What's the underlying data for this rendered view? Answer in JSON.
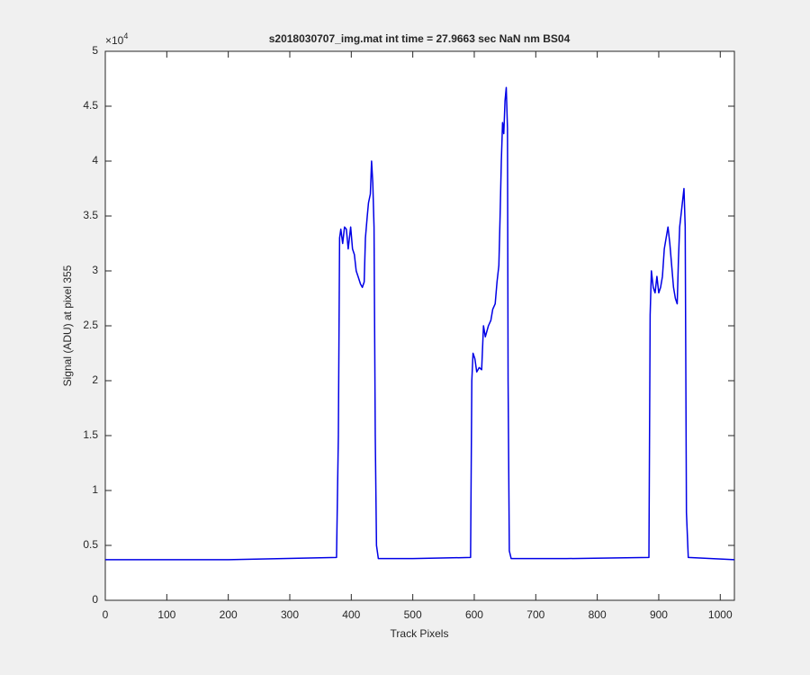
{
  "chart_data": {
    "type": "line",
    "title": "s2018030707_img.mat int time = 27.9663 sec  NaN nm BS04",
    "x_label": "Track Pixels",
    "y_label": "Signal (ADU) at pixel 355",
    "y_multiplier": {
      "base": "×10",
      "exponent": "4"
    },
    "xlim": [
      0,
      1023
    ],
    "ylim": [
      0,
      5
    ],
    "xticks": [
      0,
      100,
      200,
      300,
      400,
      500,
      600,
      700,
      800,
      900,
      1000
    ],
    "yticks": [
      0,
      0.5,
      1,
      1.5,
      2,
      2.5,
      3,
      3.5,
      4,
      4.5,
      5
    ],
    "grid": false,
    "series": [
      {
        "name": "signal",
        "color": "#0000e6",
        "x": [
          0,
          200,
          376,
          379,
          381,
          383,
          386,
          389,
          392,
          395,
          399,
          402,
          405,
          408,
          411,
          415,
          418,
          421,
          423,
          426,
          428,
          431,
          433,
          435,
          437,
          439,
          441,
          444,
          500,
          594,
          596,
          598,
          601,
          604,
          608,
          612,
          615,
          618,
          623,
          627,
          630,
          634,
          637,
          640,
          642,
          644,
          646,
          648,
          650,
          652,
          654,
          655,
          657,
          660,
          750,
          884,
          886,
          888,
          891,
          894,
          897,
          900,
          903,
          906,
          909,
          912,
          915,
          918,
          921,
          924,
          927,
          930,
          932,
          934,
          937,
          940,
          941,
          943,
          945,
          948,
          1023
        ],
        "values": [
          0.37,
          0.37,
          0.39,
          1.5,
          3.3,
          3.38,
          3.25,
          3.4,
          3.38,
          3.2,
          3.4,
          3.2,
          3.15,
          3.0,
          2.95,
          2.88,
          2.85,
          2.9,
          3.3,
          3.5,
          3.62,
          3.7,
          4.0,
          3.8,
          3.4,
          1.5,
          0.5,
          0.38,
          0.38,
          0.39,
          2.0,
          2.25,
          2.2,
          2.08,
          2.12,
          2.1,
          2.5,
          2.4,
          2.5,
          2.55,
          2.65,
          2.7,
          2.9,
          3.05,
          3.5,
          4.0,
          4.35,
          4.25,
          4.55,
          4.67,
          4.3,
          2.0,
          0.45,
          0.38,
          0.38,
          0.39,
          2.6,
          3.0,
          2.85,
          2.8,
          2.95,
          2.8,
          2.85,
          2.95,
          3.2,
          3.3,
          3.4,
          3.25,
          3.05,
          2.85,
          2.75,
          2.7,
          3.1,
          3.4,
          3.55,
          3.7,
          3.75,
          3.4,
          0.8,
          0.39,
          0.37
        ]
      }
    ]
  }
}
